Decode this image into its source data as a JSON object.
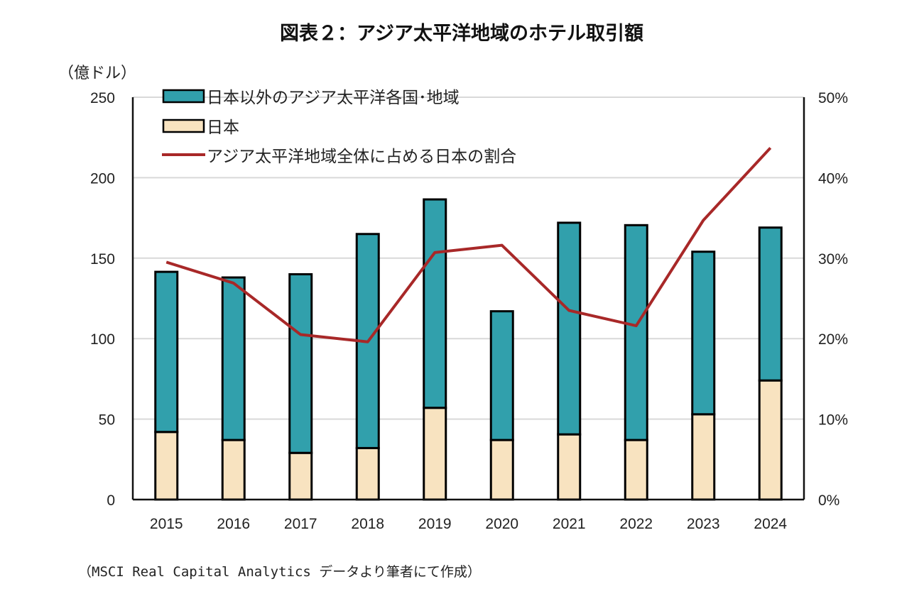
{
  "chart_data": {
    "type": "bar",
    "stacked": true,
    "title": "図表２：アジア太平洋地域のホテル取引額",
    "ylabel": "（億ドル）",
    "y2label": "",
    "xlabel": "",
    "categories": [
      "2015",
      "2016",
      "2017",
      "2018",
      "2019",
      "2020",
      "2021",
      "2022",
      "2023",
      "2024"
    ],
    "ylim": [
      0,
      250
    ],
    "yticks": [
      0,
      50,
      100,
      150,
      200,
      250
    ],
    "ytick_labels": [
      "0",
      "50",
      "100",
      "150",
      "200",
      "250"
    ],
    "y2lim": [
      0,
      50
    ],
    "y2ticks": [
      0,
      10,
      20,
      30,
      40,
      50
    ],
    "y2tick_labels": [
      "0%",
      "10%",
      "20%",
      "30%",
      "40%",
      "50%"
    ],
    "grid": true,
    "legend_position": "top-left",
    "series": [
      {
        "name": "日本",
        "type": "bar",
        "axis": "left",
        "color": "#F8E3C0",
        "values": [
          42,
          37,
          29,
          32,
          57,
          37,
          40.5,
          37,
          53,
          74
        ]
      },
      {
        "name": "日本以外のアジア太平洋各国･地域",
        "type": "bar",
        "axis": "left",
        "color": "#31A0AC",
        "values": [
          99.5,
          101,
          111,
          133,
          129.5,
          80,
          131.5,
          133.5,
          101,
          95
        ]
      },
      {
        "name": "アジア太平洋地域全体に占める日本の割合",
        "type": "line",
        "axis": "right",
        "unit": "%",
        "color": "#A82828",
        "values": [
          29.5,
          26.9,
          20.5,
          19.6,
          30.7,
          31.6,
          23.5,
          21.6,
          34.7,
          43.7
        ]
      }
    ],
    "legend": [
      {
        "label": "日本以外のアジア太平洋各国･地域",
        "kind": "box",
        "color": "#31A0AC"
      },
      {
        "label": "日本",
        "kind": "box",
        "color": "#F8E3C0"
      },
      {
        "label": "アジア太平洋地域全体に占める日本の割合",
        "kind": "line",
        "color": "#A82828"
      }
    ],
    "source": "（MSCI Real Capital Analytics データより筆者にて作成）"
  },
  "colors": {
    "grid": "#D9D9D9",
    "axis": "#111111",
    "bar_outline": "#000000"
  }
}
